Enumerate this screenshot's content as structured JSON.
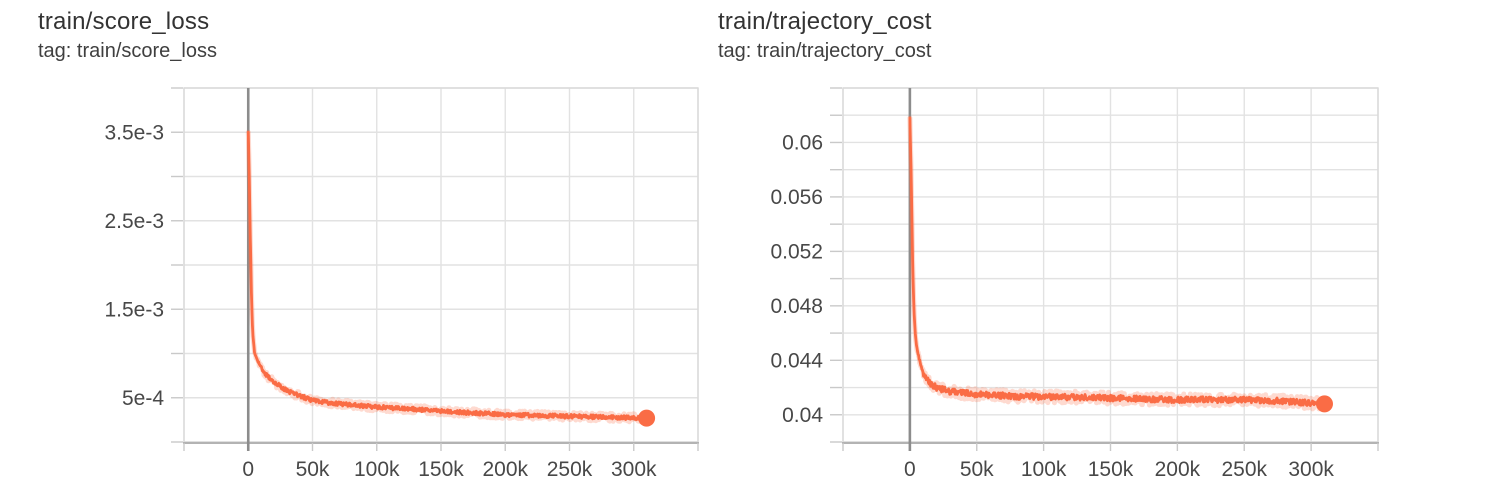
{
  "page": {
    "background": "#ffffff",
    "accent_color": "#fa6c45"
  },
  "chart_data": [
    {
      "type": "line",
      "title": "train/score_loss",
      "tag_label": "tag: train/score_loss",
      "x_axis": {
        "range": [
          -50000,
          350000
        ],
        "grid_step": 50000,
        "ticks": [
          {
            "value": 0,
            "label": "0"
          },
          {
            "value": 50000,
            "label": "50k"
          },
          {
            "value": 100000,
            "label": "100k"
          },
          {
            "value": 150000,
            "label": "150k"
          },
          {
            "value": 200000,
            "label": "200k"
          },
          {
            "value": 250000,
            "label": "250k"
          },
          {
            "value": 300000,
            "label": "300k"
          }
        ]
      },
      "y_axis": {
        "range": [
          0,
          0.004
        ],
        "grid_step": 0.0005,
        "ticks": [
          {
            "value": 0.0005,
            "label": "5e-4"
          },
          {
            "value": 0.0015,
            "label": "1.5e-3"
          },
          {
            "value": 0.0025,
            "label": "2.5e-3"
          },
          {
            "value": 0.0035,
            "label": "3.5e-3"
          }
        ]
      },
      "series": {
        "name": "train",
        "color": "#fa6c45",
        "band_color": "rgba(250,108,69,0.25)",
        "points": [
          [
            0,
            0.0035
          ],
          [
            800,
            0.003
          ],
          [
            1500,
            0.0024
          ],
          [
            2500,
            0.00165
          ],
          [
            3500,
            0.00122
          ],
          [
            5000,
            0.001
          ],
          [
            8000,
            0.0009
          ],
          [
            12000,
            0.00079
          ],
          [
            20000,
            0.00067
          ],
          [
            33000,
            0.00056
          ],
          [
            50000,
            0.00047
          ],
          [
            65000,
            0.00044
          ],
          [
            80000,
            0.00042
          ],
          [
            100000,
            0.000395
          ],
          [
            130000,
            0.00037
          ],
          [
            160000,
            0.00034
          ],
          [
            200000,
            0.00031
          ],
          [
            250000,
            0.00029
          ],
          [
            280000,
            0.00028
          ],
          [
            310000,
            0.00027
          ]
        ],
        "final": [
          310000,
          0.00027
        ],
        "line_noise": 2.3e-05,
        "band_noise": 4.6e-05
      },
      "style": {
        "grid_color": "#e2e2e2",
        "border_color": "#d9d9d9",
        "axis_line_color": "#b3b3b3",
        "zero_line_color": "#8c8c8c",
        "tick_color": "#c9c9c9",
        "tick_text_color": "#484848"
      }
    },
    {
      "type": "line",
      "title": "train/trajectory_cost",
      "tag_label": "tag: train/trajectory_cost",
      "x_axis": {
        "range": [
          -50000,
          350000
        ],
        "grid_step": 50000,
        "ticks": [
          {
            "value": 0,
            "label": "0"
          },
          {
            "value": 50000,
            "label": "50k"
          },
          {
            "value": 100000,
            "label": "100k"
          },
          {
            "value": 150000,
            "label": "150k"
          },
          {
            "value": 200000,
            "label": "200k"
          },
          {
            "value": 250000,
            "label": "250k"
          },
          {
            "value": 300000,
            "label": "300k"
          }
        ]
      },
      "y_axis": {
        "range": [
          0.038,
          0.064
        ],
        "grid_step": 0.002,
        "ticks": [
          {
            "value": 0.04,
            "label": "0.04"
          },
          {
            "value": 0.044,
            "label": "0.044"
          },
          {
            "value": 0.048,
            "label": "0.048"
          },
          {
            "value": 0.052,
            "label": "0.052"
          },
          {
            "value": 0.056,
            "label": "0.056"
          },
          {
            "value": 0.06,
            "label": "0.06"
          }
        ]
      },
      "series": {
        "name": "train",
        "color": "#fa6c45",
        "band_color": "rgba(250,108,69,0.25)",
        "points": [
          [
            0,
            0.0618
          ],
          [
            1000,
            0.0575
          ],
          [
            2000,
            0.0515
          ],
          [
            3000,
            0.0478
          ],
          [
            4000,
            0.046
          ],
          [
            5000,
            0.045
          ],
          [
            7000,
            0.0441
          ],
          [
            10000,
            0.043
          ],
          [
            15000,
            0.0423
          ],
          [
            20000,
            0.042
          ],
          [
            30000,
            0.0417
          ],
          [
            50000,
            0.0415
          ],
          [
            80000,
            0.04135
          ],
          [
            120000,
            0.0413
          ],
          [
            160000,
            0.0412
          ],
          [
            200000,
            0.0411
          ],
          [
            250000,
            0.0411
          ],
          [
            280000,
            0.041
          ],
          [
            310000,
            0.0408
          ]
        ],
        "final": [
          310000,
          0.0408
        ],
        "line_noise": 0.00022,
        "band_noise": 0.00044
      },
      "style": {
        "grid_color": "#e2e2e2",
        "border_color": "#d9d9d9",
        "axis_line_color": "#b3b3b3",
        "zero_line_color": "#8c8c8c",
        "tick_color": "#c9c9c9",
        "tick_text_color": "#484848"
      }
    }
  ]
}
